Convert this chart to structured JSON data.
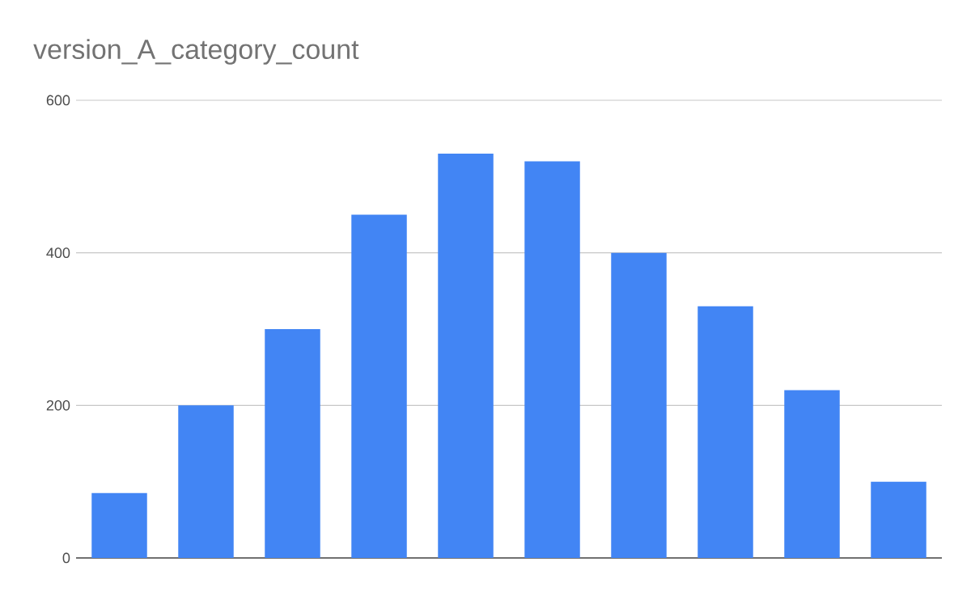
{
  "chart_data": {
    "type": "bar",
    "title": "version_A_category_count",
    "categories": [
      null,
      null,
      null,
      null,
      null,
      null,
      null,
      null,
      null,
      null
    ],
    "values": [
      85,
      200,
      300,
      450,
      530,
      520,
      400,
      330,
      220,
      100
    ],
    "color": "#4285f4",
    "ylim": [
      0,
      600
    ],
    "yticks": [
      0,
      200,
      400,
      600
    ],
    "grid": "y"
  }
}
